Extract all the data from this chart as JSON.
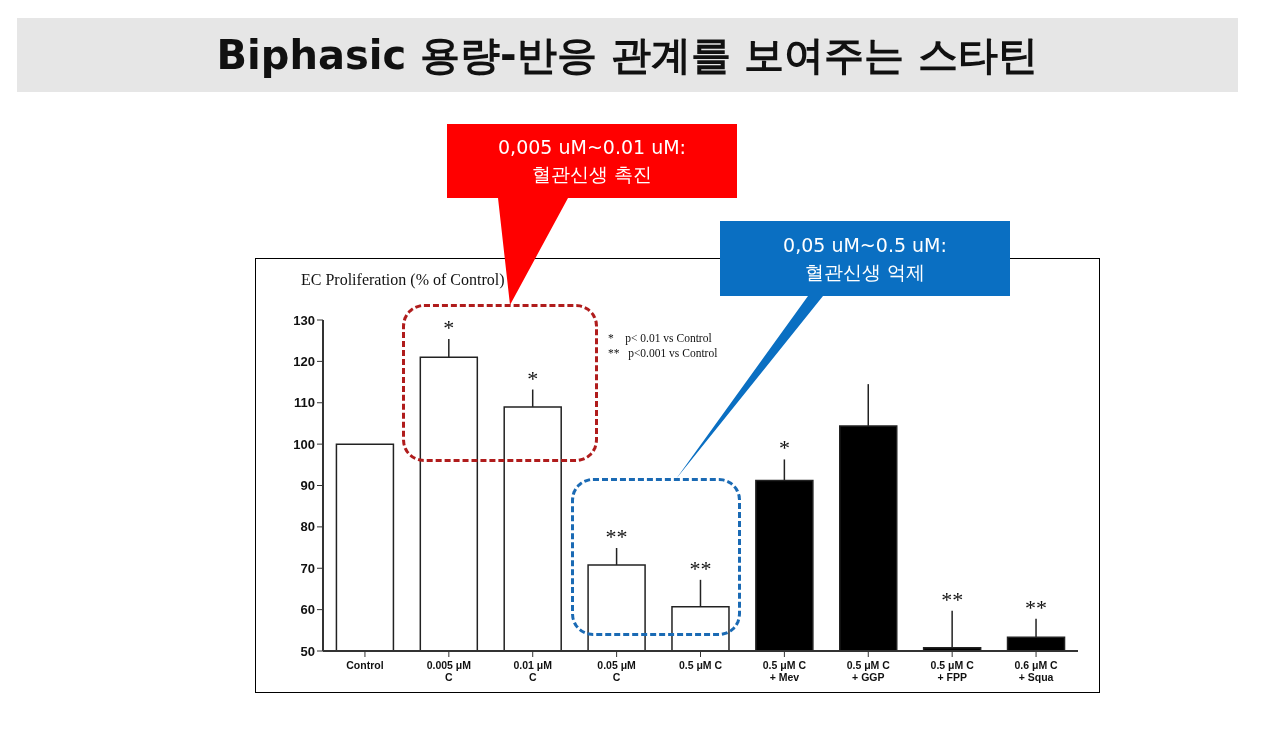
{
  "chart_data": {
    "type": "bar",
    "title": "Biphasic 용량-반응 관계를 보여주는 스타틴",
    "ylabel": "EC Proliferation (% of Control)",
    "categories": [
      "Control",
      "0.005 μM\nC",
      "0.01 μM\nC",
      "0.05 μM\nC",
      "0.5 μM C",
      "0.5 μM C\n+ Mev",
      "0.5 μM C\n+ GGP",
      "0.5 μM C\n+ FPP",
      "0.6 μM C\n+ Squa"
    ],
    "values": [
      100,
      121,
      109,
      70.8,
      60.7,
      91.2,
      104.4,
      50.8,
      53.3
    ],
    "colors": [
      "#ffffff",
      "#ffffff",
      "#ffffff",
      "#ffffff",
      "#ffffff",
      "#000000",
      "#000000",
      "#000000",
      "#000000"
    ],
    "errors": [
      null,
      [
        121,
        125.4
      ],
      [
        109,
        113.2
      ],
      [
        70.8,
        74.9
      ],
      [
        60.7,
        67.2
      ],
      [
        91.2,
        96.3
      ],
      [
        104.4,
        114.5
      ],
      [
        50.8,
        59.7
      ],
      [
        53.3,
        57.8
      ]
    ],
    "ylim": [
      50,
      130
    ],
    "yticks": [
      50,
      60,
      70,
      80,
      90,
      100,
      110,
      120,
      130
    ],
    "grid": false,
    "legend": false,
    "value_labels": [
      null,
      "*",
      "*",
      "**",
      "**",
      "*",
      null,
      "**",
      "**"
    ],
    "annotations": [
      "*    p< 0.01 vs Control",
      "**   p<0.001 vs Control",
      "0,005 uM~0.01 uM:\n혈관신생 촉진",
      "0,05 uM~0.5 uM:\n혈관신생 억제"
    ]
  }
}
